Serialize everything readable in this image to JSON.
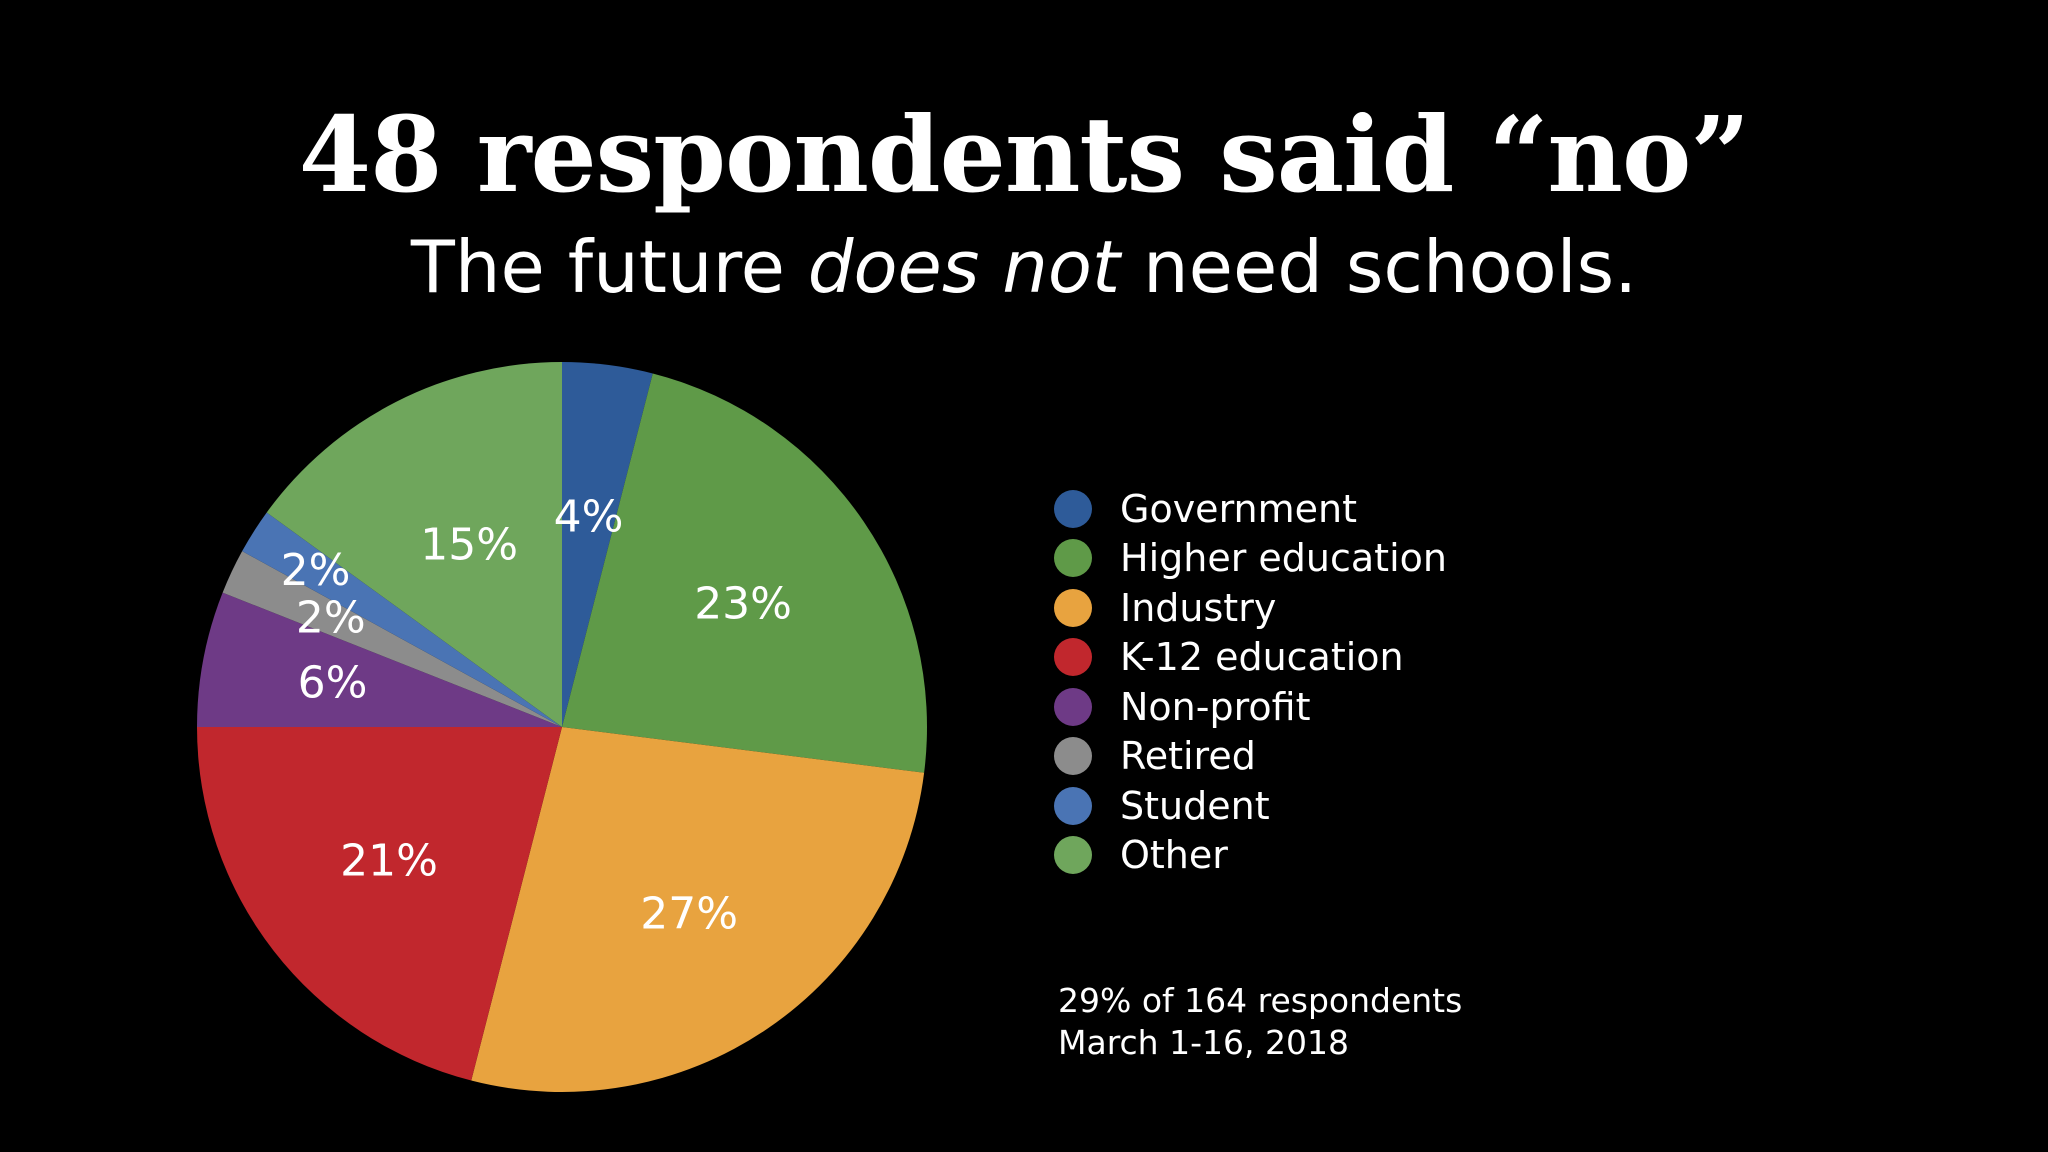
{
  "header": {
    "title": "48 respondents said “no”",
    "subtitle_part1": "The future ",
    "subtitle_emphasis": "does not",
    "subtitle_part2": " need schools."
  },
  "chart_data": {
    "type": "pie",
    "categories": [
      "Government",
      "Higher education",
      "Industry",
      "K-12 education",
      "Non-profit",
      "Retired",
      "Student",
      "Other"
    ],
    "values": [
      4,
      23,
      27,
      21,
      6,
      2,
      2,
      15
    ],
    "value_labels": [
      "4%",
      "23%",
      "27%",
      "21%",
      "6%",
      "2%",
      "2%",
      "15%"
    ],
    "colors": [
      "#2e5b99",
      "#5f9a48",
      "#e8a33f",
      "#c1272d",
      "#6e3a86",
      "#8c8c8c",
      "#4a74b4",
      "#6fa65c"
    ],
    "legend_position": "right",
    "start_angle": "12 o'clock",
    "direction": "clockwise"
  },
  "legend": {
    "items": [
      {
        "label": "Government",
        "color": "#2e5b99"
      },
      {
        "label": "Higher education",
        "color": "#5f9a48"
      },
      {
        "label": "Industry",
        "color": "#e8a33f"
      },
      {
        "label": "K-12 education",
        "color": "#c1272d"
      },
      {
        "label": "Non-profit",
        "color": "#6e3a86"
      },
      {
        "label": "Retired",
        "color": "#8c8c8c"
      },
      {
        "label": "Student",
        "color": "#4a74b4"
      },
      {
        "label": "Other",
        "color": "#6fa65c"
      }
    ]
  },
  "footnote": {
    "line1": "29% of 164 respondents",
    "line2": "March 1-16, 2018"
  }
}
